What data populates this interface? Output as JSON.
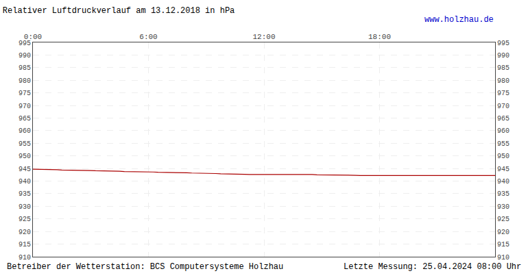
{
  "chart_data": {
    "type": "line",
    "title": {
      "text": "Relativer Luftdruckverlauf am 13.12.2018 in hPa",
      "color": "#000000"
    },
    "annotations": [
      {
        "text": "www.holzhau.de",
        "color": "#0000cc"
      },
      {
        "text": "Betreiber der Wetterstation: BCS Computersysteme Holzhau",
        "color": "#000000"
      },
      {
        "text": "Letzte Messung: 25.04.2024 08:00 Uhr",
        "color": "#000000"
      }
    ],
    "x": [
      0,
      15,
      30,
      45,
      60,
      75,
      90,
      105,
      120,
      135,
      150,
      165,
      180,
      195,
      210,
      225,
      240,
      255,
      270,
      285,
      300,
      315,
      330,
      345,
      360,
      375,
      390,
      405,
      420,
      435,
      450,
      465,
      480,
      495,
      510,
      525,
      540,
      555,
      570,
      585,
      600,
      615,
      630,
      645,
      660,
      675,
      690,
      705,
      720,
      735,
      750,
      765,
      780,
      795,
      810,
      825,
      840,
      855,
      870,
      885,
      900,
      915,
      930,
      945,
      960,
      975,
      990,
      1005,
      1020,
      1035,
      1050,
      1065,
      1080,
      1095,
      1110,
      1125,
      1140,
      1155,
      1170,
      1185,
      1200,
      1215,
      1230,
      1245,
      1260,
      1275,
      1290,
      1305,
      1320,
      1335,
      1350,
      1365,
      1380,
      1395,
      1410,
      1425,
      1440
    ],
    "values": [
      944.7,
      944.7,
      944.6,
      944.6,
      944.5,
      944.5,
      944.4,
      944.4,
      944.3,
      944.3,
      944.3,
      944.2,
      944.2,
      944.1,
      944.1,
      944.0,
      944.0,
      943.9,
      943.9,
      943.8,
      943.8,
      943.7,
      943.7,
      943.6,
      943.6,
      943.6,
      943.5,
      943.5,
      943.4,
      943.4,
      943.4,
      943.3,
      943.3,
      943.2,
      943.2,
      943.1,
      943.1,
      943.0,
      943.0,
      942.9,
      942.9,
      942.8,
      942.8,
      942.7,
      942.7,
      942.6,
      942.6,
      942.6,
      942.6,
      942.7,
      942.7,
      942.8,
      942.8,
      942.8,
      942.8,
      942.7,
      942.7,
      942.6,
      942.6,
      942.5,
      942.5,
      942.4,
      942.4,
      942.4,
      942.3,
      942.3,
      942.3,
      942.3,
      942.2,
      942.2,
      942.2,
      942.3,
      942.3,
      942.4,
      942.4,
      942.4,
      942.4,
      942.3,
      942.3,
      942.3,
      942.2,
      942.2,
      942.2,
      942.2,
      942.2,
      942.3,
      942.3,
      942.3,
      942.3,
      942.3,
      942.3,
      942.3,
      942.2,
      942.2,
      942.2,
      942.2,
      942.2
    ],
    "color": "#aa0000",
    "xlim": [
      0,
      1440
    ],
    "xticks": [
      {
        "value": 0,
        "label": "0:00"
      },
      {
        "value": 360,
        "label": "6:00"
      },
      {
        "value": 720,
        "label": "12:00"
      },
      {
        "value": 1080,
        "label": "18:00"
      }
    ],
    "ylim": [
      910,
      995
    ],
    "yticks": [
      910,
      915,
      920,
      925,
      930,
      935,
      940,
      945,
      950,
      955,
      960,
      965,
      970,
      975,
      980,
      985,
      990,
      995
    ],
    "y2lim": [
      910,
      995
    ],
    "y2ticks": [
      910,
      915,
      920,
      925,
      930,
      935,
      940,
      945,
      950,
      955,
      960,
      965,
      970,
      975,
      980,
      985,
      990,
      995
    ],
    "grid": true
  }
}
